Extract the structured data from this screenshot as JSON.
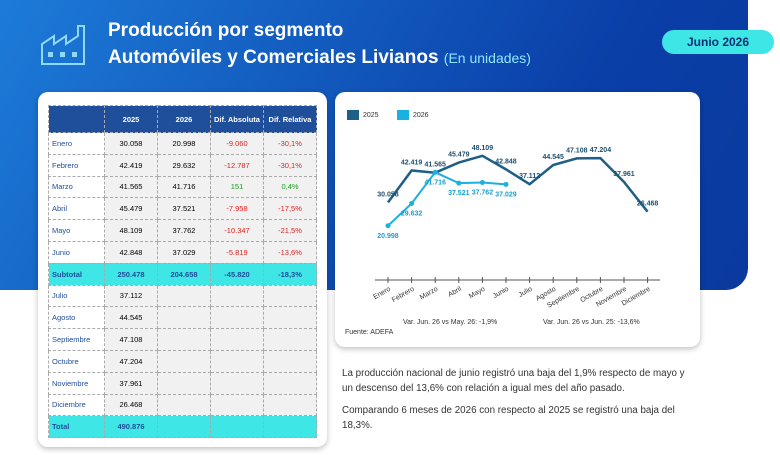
{
  "header": {
    "title": "Producción por segmento",
    "subtitle": "Automóviles y Comerciales Livianos",
    "unit": "(En unidades)",
    "badge": "Junio 2026"
  },
  "table": {
    "columns": [
      "2025",
      "2026",
      "Dif. Absoluta",
      "Dif. Relativa"
    ],
    "rows": [
      [
        "Enero",
        "30.058",
        "20.998",
        "-9.060",
        "-30,1%"
      ],
      [
        "Febrero",
        "42.419",
        "29.632",
        "-12.787",
        "-30,1%"
      ],
      [
        "Marzo",
        "41.565",
        "41.716",
        "151",
        "0,4%"
      ],
      [
        "Abril",
        "45.479",
        "37.521",
        "-7.958",
        "-17,5%"
      ],
      [
        "Mayo",
        "48.109",
        "37.762",
        "-10.347",
        "-21,5%"
      ],
      [
        "Junio",
        "42.848",
        "37.029",
        "-5.819",
        "-13,6%"
      ],
      [
        "Subtotal",
        "250.478",
        "204.658",
        "-45.820",
        "-18,3%"
      ],
      [
        "Julio",
        "37.112"
      ],
      [
        "Agosto",
        "44.545"
      ],
      [
        "Septiembre",
        "47.108"
      ],
      [
        "Octubre",
        "47.204"
      ],
      [
        "Noviembre",
        "37.961"
      ],
      [
        "Diciembre",
        "26.468"
      ],
      [
        "Total",
        "490.876"
      ]
    ]
  },
  "chart_data": {
    "type": "line",
    "categories": [
      "Enero",
      "Febrero",
      "Marzo",
      "Abril",
      "Mayo",
      "Junio",
      "Julio",
      "Agosto",
      "Septiembre",
      "Octubre",
      "Noviembre",
      "Diciembre"
    ],
    "series": [
      {
        "name": "2025",
        "color": "#1d5f86",
        "values": [
          30058,
          42419,
          41565,
          45479,
          48109,
          42848,
          37112,
          44545,
          47108,
          47204,
          37961,
          26468
        ],
        "value_labels": [
          "30.058",
          "42.419",
          "41.565",
          "45.479",
          "48.109",
          "42.848",
          "37.112",
          "44.545",
          "47.108",
          "47.204",
          "37.961",
          "26.468"
        ]
      },
      {
        "name": "2026",
        "color": "#1ab0e0",
        "values": [
          20998,
          29632,
          41716,
          37521,
          37762,
          37029,
          null,
          null,
          null,
          null,
          null,
          null
        ],
        "value_labels": [
          "20.998",
          "29.632",
          "41.716",
          "37.521",
          "37.762",
          "37.029",
          null,
          null,
          null,
          null,
          null,
          null
        ]
      }
    ],
    "ylim": [
      0,
      55000
    ],
    "annotations": [
      "Var. Jun. 26 vs May. 26: -1,9%",
      "Var. Jun. 26 vs Jun. 25: -13,6%"
    ],
    "source": "Fuente: ADEFA"
  },
  "text": [
    "La producción nacional de junio registró una baja del 1,9% respecto de mayo y un descenso del 13,6% con relación a igual mes del año pasado.",
    "Comparando 6 meses de 2026 con respecto al 2025 se registró una baja del 18,3%."
  ]
}
